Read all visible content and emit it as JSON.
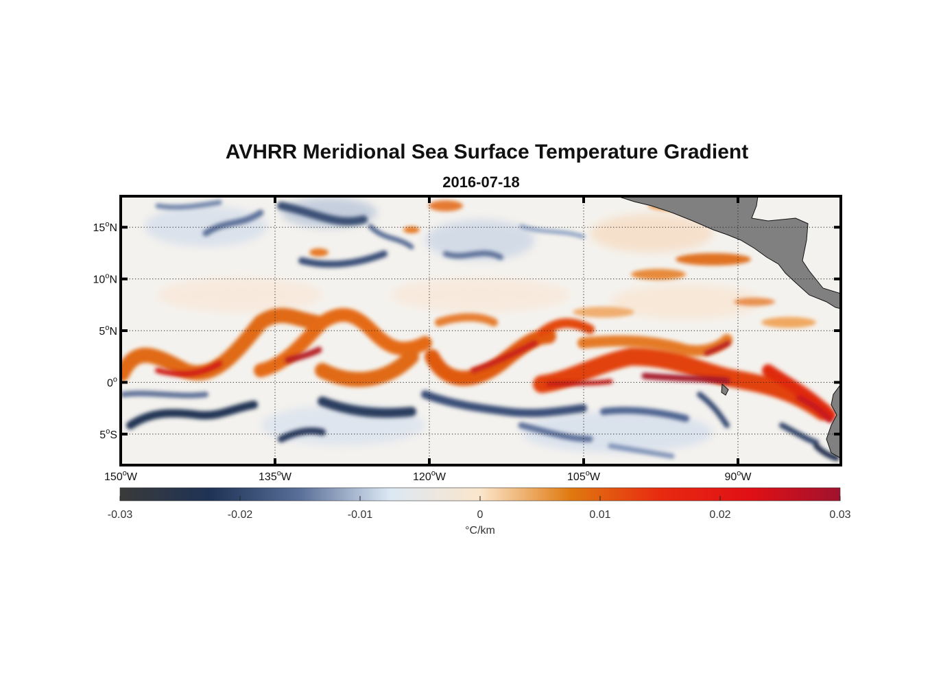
{
  "map": {
    "title": "AVHRR Meridional Sea Surface Temperature Gradient",
    "date": "2016-07-18",
    "lon_range": [
      -150,
      -80
    ],
    "lat_range": [
      -8,
      18
    ],
    "lon_ticks": [
      {
        "value": -150,
        "num": "150",
        "hemi": "W"
      },
      {
        "value": -135,
        "num": "135",
        "hemi": "W"
      },
      {
        "value": -120,
        "num": "120",
        "hemi": "W"
      },
      {
        "value": -105,
        "num": "105",
        "hemi": "W"
      },
      {
        "value": -90,
        "num": "90",
        "hemi": "W"
      }
    ],
    "lat_ticks": [
      {
        "value": 15,
        "num": "15",
        "hemi": "N"
      },
      {
        "value": 10,
        "num": "10",
        "hemi": "N"
      },
      {
        "value": 5,
        "num": "5",
        "hemi": "N"
      },
      {
        "value": 0,
        "num": "0",
        "hemi": ""
      },
      {
        "value": -5,
        "num": "5",
        "hemi": "S"
      }
    ],
    "grid": true,
    "land_color": "#808080",
    "colorbar": {
      "ticks": [
        {
          "value": -0.03,
          "label": "-0.03"
        },
        {
          "value": -0.02,
          "label": "-0.02"
        },
        {
          "value": -0.01,
          "label": "-0.01"
        },
        {
          "value": 0,
          "label": "0"
        },
        {
          "value": 0.01,
          "label": "0.01"
        },
        {
          "value": 0.02,
          "label": "0.02"
        },
        {
          "value": 0.03,
          "label": "0.03"
        }
      ],
      "range": [
        -0.03,
        0.03
      ],
      "unit": "°C/km",
      "colors": [
        "#3a3a3a",
        "#1e3355",
        "#5a6f99",
        "#dce8f4",
        "#fbe6cc",
        "#e07a10",
        "#e82a10",
        "#e01015",
        "#a0122e"
      ]
    }
  }
}
